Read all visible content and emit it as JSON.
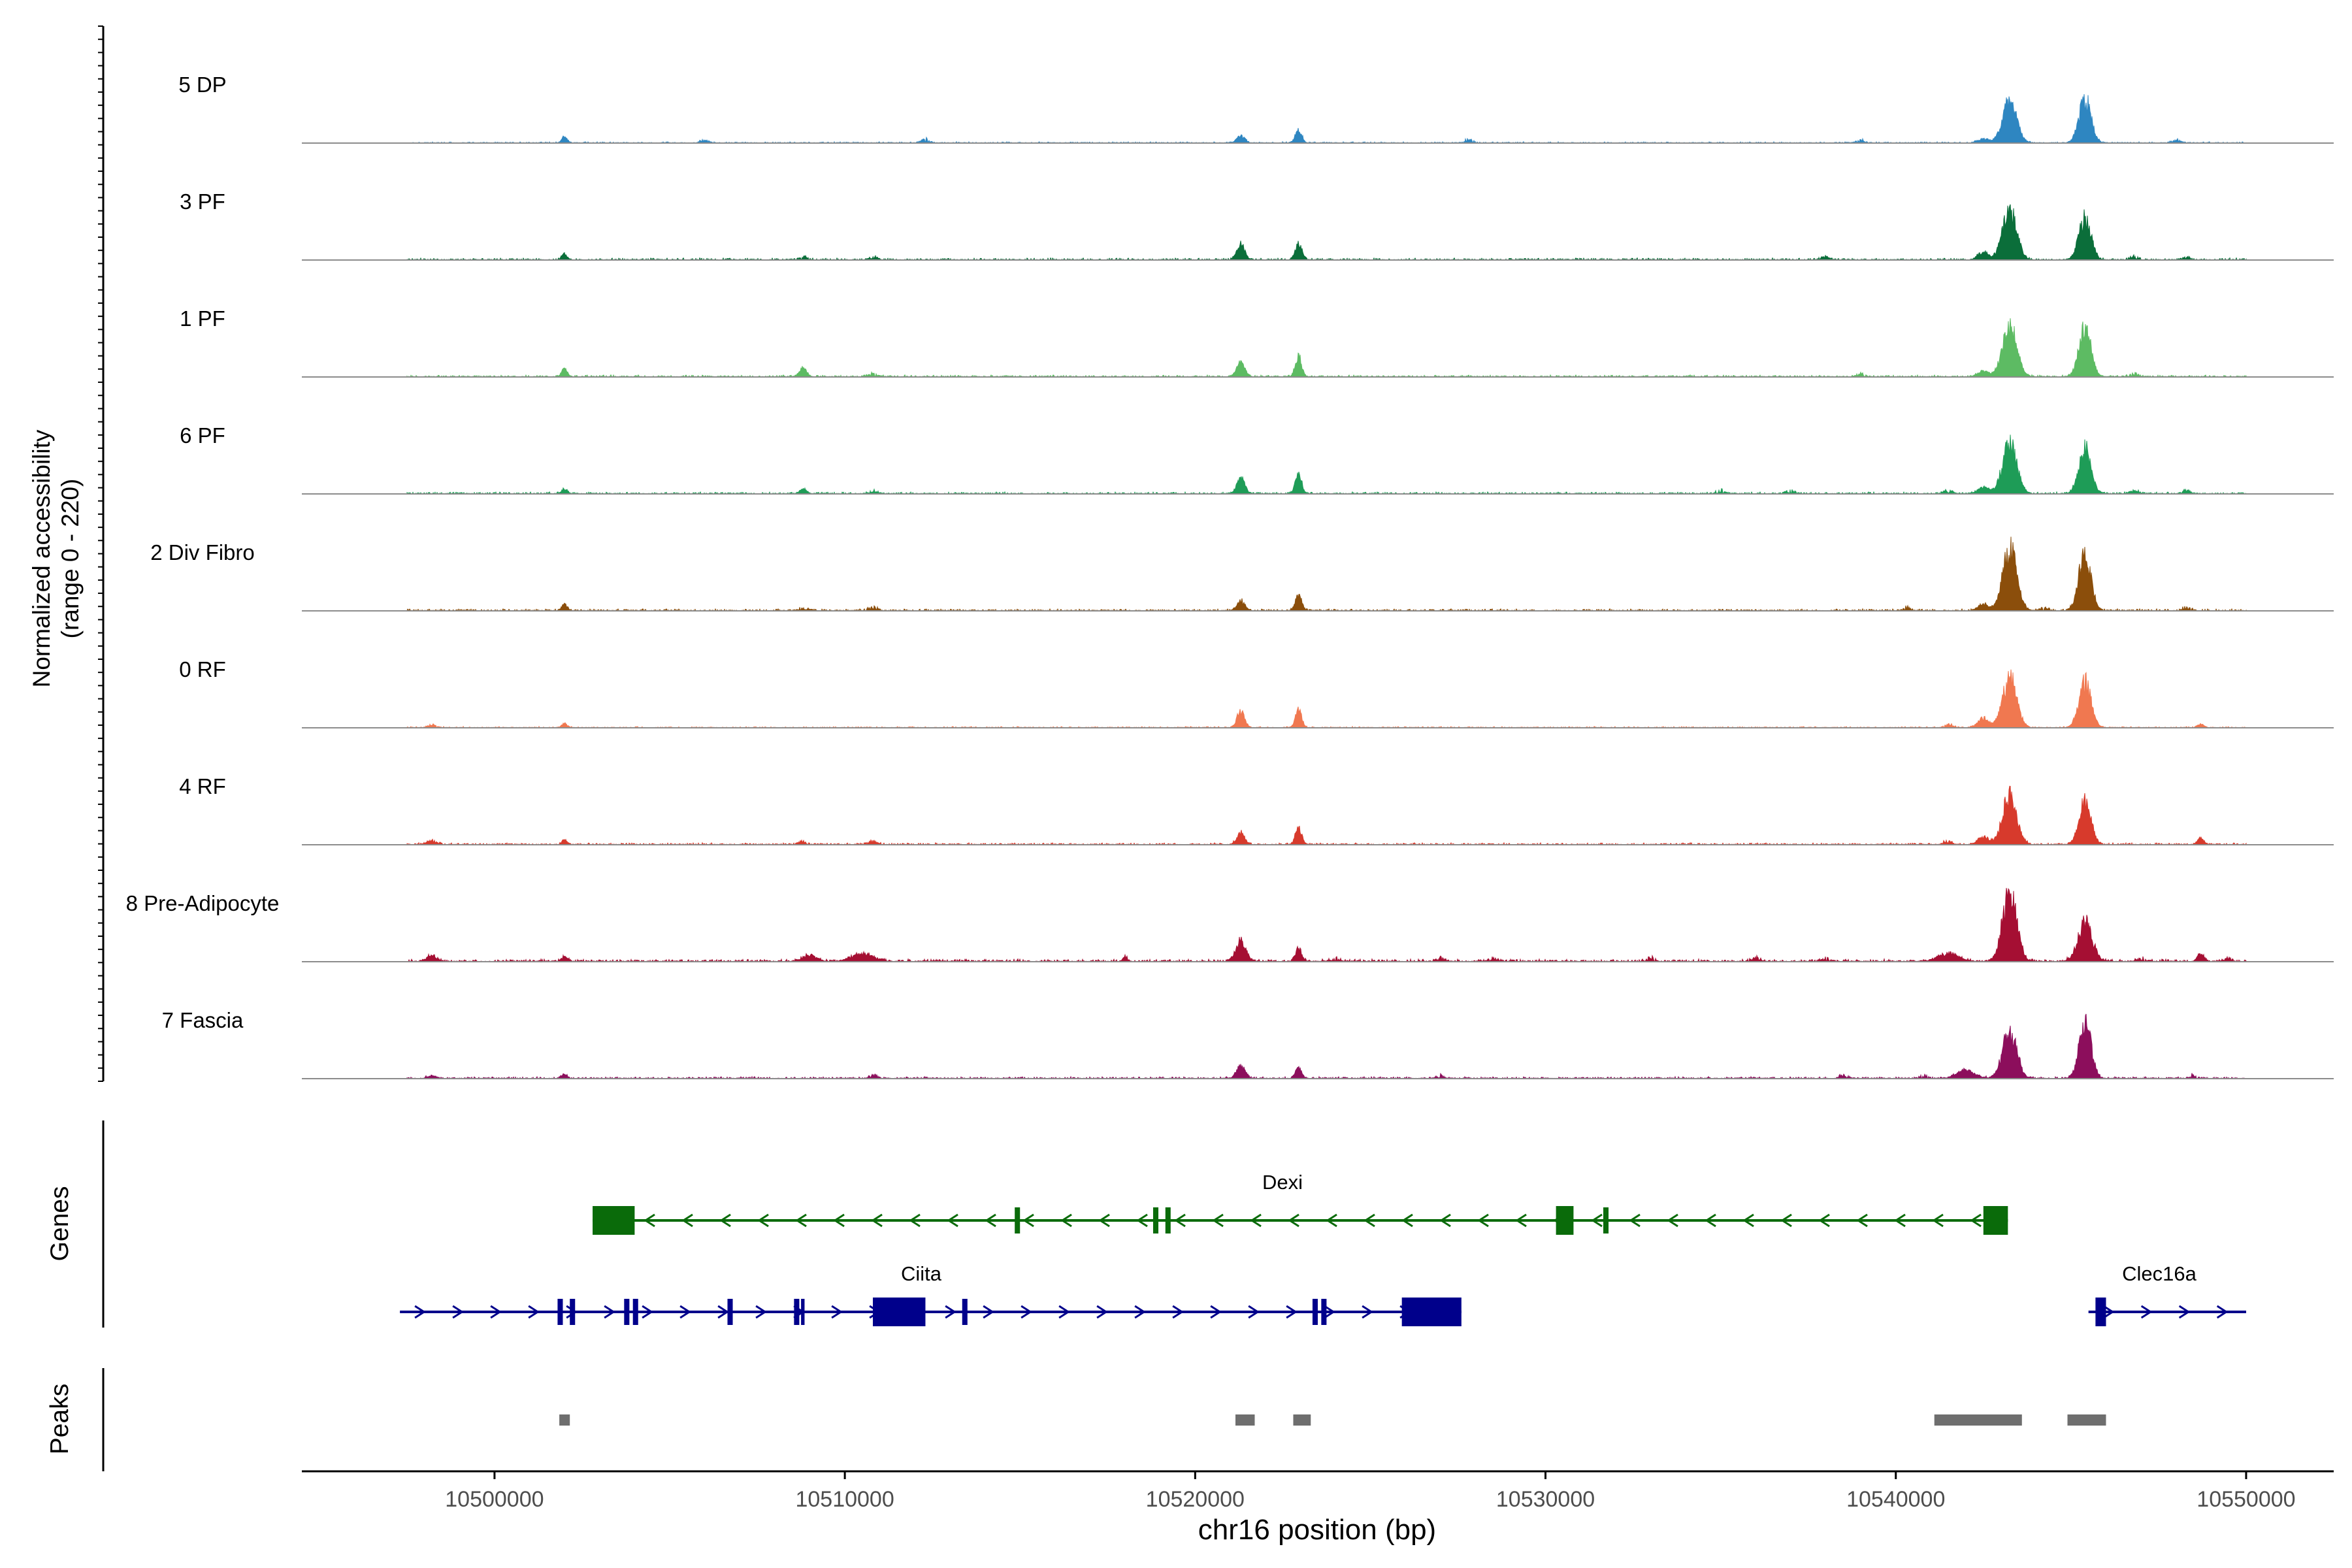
{
  "chart_data": {
    "type": "area",
    "title": "",
    "region": "chr16",
    "xlabel": "chr16 position (bp)",
    "ylabel_line1": "Normalized accessibility",
    "ylabel_line2": "(range 0 - 220)",
    "ylim": [
      0,
      220
    ],
    "xlim": [
      10494500,
      10552500
    ],
    "data_extent": [
      10497500,
      10550000
    ],
    "x_ticks": [
      10500000,
      10510000,
      10520000,
      10530000,
      10540000,
      10550000
    ],
    "x_tick_labels": [
      "10500000",
      "10510000",
      "10520000",
      "10530000",
      "10540000",
      "10550000"
    ],
    "peak_positions": [
      10502000,
      10521300,
      10522950,
      10543250,
      10545400
    ],
    "series": [
      {
        "name": "5 DP",
        "color": "#2E86C1",
        "noise": 2,
        "peaks": [
          [
            10502000,
            14,
            80
          ],
          [
            10521300,
            18,
            110
          ],
          [
            10522950,
            32,
            90
          ],
          [
            10542500,
            10,
            150
          ],
          [
            10543250,
            100,
            200
          ],
          [
            10545400,
            105,
            170
          ]
        ],
        "bumps": [
          10506000,
          10512300,
          10527800,
          10539000,
          10548000
        ]
      },
      {
        "name": "3 PF",
        "color": "#0B6E3A",
        "noise": 3,
        "peaks": [
          [
            10502000,
            12,
            80
          ],
          [
            10521300,
            38,
            110
          ],
          [
            10522950,
            42,
            90
          ],
          [
            10542500,
            18,
            150
          ],
          [
            10543250,
            118,
            200
          ],
          [
            10545400,
            100,
            170
          ]
        ],
        "bumps": [
          10508800,
          10510800,
          10538000,
          10546800,
          10548300
        ]
      },
      {
        "name": "1 PF",
        "color": "#5DBB63",
        "noise": 3,
        "peaks": [
          [
            10502000,
            18,
            80
          ],
          [
            10508800,
            22,
            100
          ],
          [
            10521300,
            35,
            110
          ],
          [
            10522950,
            48,
            90
          ],
          [
            10542500,
            14,
            150
          ],
          [
            10543250,
            120,
            200
          ],
          [
            10545400,
            115,
            170
          ]
        ],
        "bumps": [
          10510800,
          10539000,
          10546800
        ]
      },
      {
        "name": "6 PF",
        "color": "#1E9C57",
        "noise": 3,
        "peaks": [
          [
            10502000,
            10,
            80
          ],
          [
            10508800,
            12,
            90
          ],
          [
            10521300,
            38,
            110
          ],
          [
            10522950,
            46,
            90
          ],
          [
            10542500,
            16,
            150
          ],
          [
            10543250,
            122,
            200
          ],
          [
            10545400,
            112,
            170
          ]
        ],
        "bumps": [
          10510800,
          10535000,
          10537000,
          10541500,
          10546800,
          10548300
        ]
      },
      {
        "name": "2 Div Fibro",
        "color": "#8B4E0B",
        "noise": 3,
        "peaks": [
          [
            10502000,
            14,
            80
          ],
          [
            10521300,
            24,
            110
          ],
          [
            10522950,
            38,
            90
          ],
          [
            10542500,
            14,
            150
          ],
          [
            10543250,
            148,
            200
          ],
          [
            10545400,
            140,
            170
          ]
        ],
        "bumps": [
          10508800,
          10510800,
          10540300,
          10544200,
          10548300
        ]
      },
      {
        "name": "0 RF",
        "color": "#F07850",
        "noise": 2,
        "peaks": [
          [
            10502000,
            10,
            80
          ],
          [
            10521300,
            38,
            110
          ],
          [
            10522950,
            42,
            90
          ],
          [
            10542500,
            22,
            150
          ],
          [
            10543250,
            120,
            200
          ],
          [
            10545400,
            112,
            170
          ],
          [
            10548700,
            8,
            90
          ]
        ],
        "bumps": [
          10498200,
          10541500
        ]
      },
      {
        "name": "4 RF",
        "color": "#D73A2C",
        "noise": 3,
        "peaks": [
          [
            10498200,
            8,
            150
          ],
          [
            10502000,
            10,
            80
          ],
          [
            10521300,
            28,
            110
          ],
          [
            10522950,
            38,
            90
          ],
          [
            10542500,
            18,
            150
          ],
          [
            10543250,
            118,
            200
          ],
          [
            10545400,
            102,
            170
          ],
          [
            10548700,
            16,
            90
          ]
        ],
        "bumps": [
          10508800,
          10510800,
          10541500
        ]
      },
      {
        "name": "8 Pre-Adipocyte",
        "color": "#A50F33",
        "noise": 4,
        "peaks": [
          [
            10498200,
            12,
            150
          ],
          [
            10502000,
            12,
            80
          ],
          [
            10509000,
            14,
            200
          ],
          [
            10510500,
            18,
            300
          ],
          [
            10518000,
            10,
            60
          ],
          [
            10521300,
            48,
            150
          ],
          [
            10522950,
            30,
            90
          ],
          [
            10541500,
            18,
            300
          ],
          [
            10543250,
            165,
            200
          ],
          [
            10545400,
            95,
            200
          ],
          [
            10548700,
            16,
            90
          ]
        ],
        "bumps": [
          10524000,
          10527000,
          10528500,
          10533000,
          10536000,
          10538000,
          10547000,
          10549500
        ]
      },
      {
        "name": "7 Fascia",
        "color": "#8C0E5C",
        "noise": 3,
        "peaks": [
          [
            10498200,
            6,
            120
          ],
          [
            10502000,
            10,
            80
          ],
          [
            10521300,
            30,
            120
          ],
          [
            10522950,
            24,
            90
          ],
          [
            10542000,
            20,
            250
          ],
          [
            10543250,
            118,
            200
          ],
          [
            10545400,
            135,
            170
          ]
        ],
        "bumps": [
          10510800,
          10527000,
          10538500,
          10540800,
          10548500
        ]
      }
    ],
    "genes": [
      {
        "name": "Dexi",
        "color": "#0A6B0A",
        "strand": "-",
        "start": 10502800,
        "end": 10543200,
        "exons": [
          [
            10502800,
            10504000,
            "big"
          ],
          [
            10514850,
            10515000,
            "thin"
          ],
          [
            10518800,
            10518950,
            "thin"
          ],
          [
            10519150,
            10519300,
            "thin"
          ],
          [
            10530300,
            10530800,
            "big"
          ],
          [
            10531650,
            10531800,
            "thin"
          ],
          [
            10542500,
            10543200,
            "big"
          ]
        ]
      },
      {
        "name": "Ciita",
        "color": "#00008B",
        "strand": "+",
        "start": 10497300,
        "end": 10527600,
        "exons": [
          [
            10501800,
            10501950,
            "thin"
          ],
          [
            10502150,
            10502300,
            "thin"
          ],
          [
            10503700,
            10503850,
            "thin"
          ],
          [
            10503950,
            10504100,
            "thin"
          ],
          [
            10506650,
            10506800,
            "thin"
          ],
          [
            10508550,
            10508700,
            "thin"
          ],
          [
            10508750,
            10508850,
            "thin"
          ],
          [
            10510800,
            10512300,
            "big"
          ],
          [
            10513350,
            10513500,
            "thin"
          ],
          [
            10523350,
            10523500,
            "thin"
          ],
          [
            10523600,
            10523750,
            "thin"
          ],
          [
            10525900,
            10527600,
            "big"
          ]
        ]
      },
      {
        "name": "Clec16a",
        "color": "#00008B",
        "strand": "+",
        "start": 10545500,
        "end": 10550000,
        "exons": [
          [
            10545700,
            10546000,
            "big"
          ]
        ]
      }
    ],
    "peaks": [
      [
        10501850,
        10502150
      ],
      [
        10521150,
        10521700
      ],
      [
        10522800,
        10523300
      ],
      [
        10541100,
        10543600
      ],
      [
        10544900,
        10546000
      ]
    ],
    "panel_labels": {
      "genes": "Genes",
      "peaks": "Peaks"
    }
  }
}
